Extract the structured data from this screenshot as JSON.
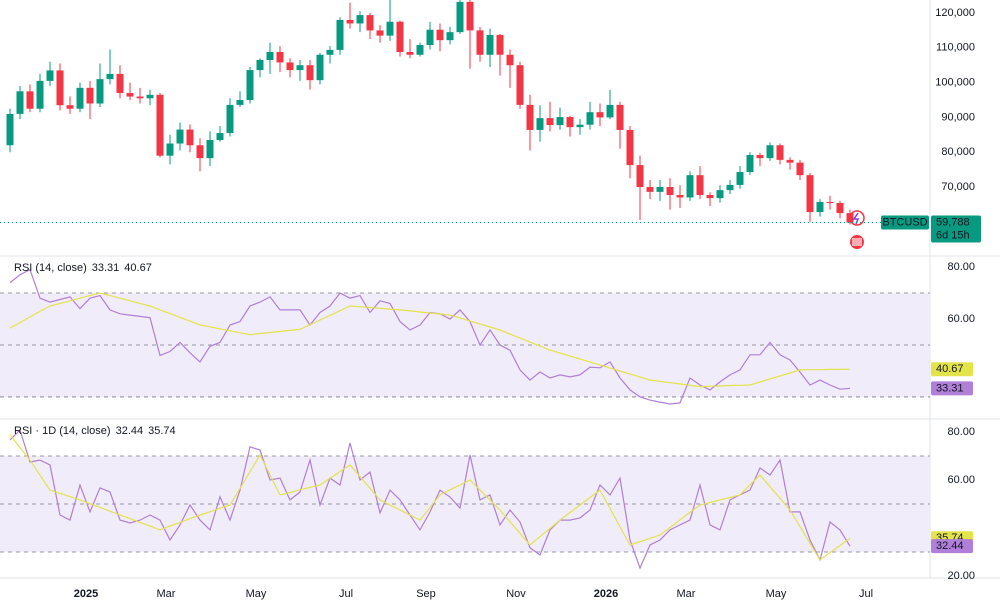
{
  "chart_data": [
    {
      "type": "candlestick",
      "symbol": "BTCUSD",
      "price_label": "59,788",
      "countdown": "6d 15h",
      "up_color": "#089981",
      "down_color": "#f23645",
      "categories": [
        null,
        null,
        null,
        null,
        null,
        null,
        null,
        null,
        "2025",
        null,
        null,
        null,
        null,
        null,
        null,
        null,
        "Mar",
        null,
        null,
        null,
        null,
        null,
        null,
        null,
        null,
        "May",
        null,
        null,
        null,
        null,
        null,
        null,
        null,
        null,
        "Jul",
        null,
        null,
        null,
        null,
        null,
        null,
        null,
        "Sep",
        null,
        null,
        null,
        null,
        null,
        null,
        null,
        null,
        "Nov",
        null,
        null,
        null,
        null,
        null,
        null,
        null,
        null,
        "2026",
        null,
        null,
        null,
        null,
        null,
        null,
        null,
        "Mar",
        null,
        null,
        null,
        null,
        null,
        null,
        null,
        null,
        "May",
        null,
        null,
        null,
        null,
        null,
        null,
        null,
        null,
        "Jul"
      ],
      "candles": [
        [
          82000,
          92500,
          80000,
          91000
        ],
        [
          91000,
          99000,
          89500,
          97500
        ],
        [
          97500,
          99500,
          91500,
          92500
        ],
        [
          92500,
          102500,
          91500,
          100500
        ],
        [
          100500,
          106000,
          99000,
          103500
        ],
        [
          103500,
          105500,
          92000,
          93500
        ],
        [
          93500,
          96000,
          91000,
          92500
        ],
        [
          92500,
          100000,
          91500,
          98500
        ],
        [
          98500,
          100500,
          89500,
          94000
        ],
        [
          94000,
          105500,
          93000,
          101000
        ],
        [
          101000,
          109500,
          99500,
          102500
        ],
        [
          102500,
          105000,
          95500,
          97000
        ],
        [
          97000,
          100000,
          95000,
          96000
        ],
        [
          96000,
          98500,
          94000,
          95500
        ],
        [
          95500,
          98000,
          93500,
          96500
        ],
        [
          96500,
          97000,
          78500,
          79000
        ],
        [
          79000,
          85000,
          76500,
          82500
        ],
        [
          82500,
          88500,
          80500,
          86500
        ],
        [
          86500,
          88000,
          80000,
          82000
        ],
        [
          82000,
          84000,
          74500,
          78300
        ],
        [
          78300,
          86000,
          76000,
          83500
        ],
        [
          83500,
          87500,
          83000,
          85500
        ],
        [
          85500,
          95500,
          84500,
          93600
        ],
        [
          93600,
          97500,
          93000,
          95000
        ],
        [
          95000,
          104500,
          94000,
          103600
        ],
        [
          103600,
          107000,
          101500,
          106500
        ],
        [
          106500,
          111500,
          102500,
          108800
        ],
        [
          108800,
          110500,
          103000,
          105800
        ],
        [
          105800,
          107000,
          101500,
          103600
        ],
        [
          103600,
          106500,
          100500,
          105000
        ],
        [
          105000,
          106500,
          98000,
          100700
        ],
        [
          100700,
          108500,
          99500,
          108000
        ],
        [
          108000,
          110500,
          105500,
          109400
        ],
        [
          109400,
          118800,
          108000,
          118000
        ],
        [
          118000,
          123000,
          115500,
          117000
        ],
        [
          117000,
          120500,
          114500,
          119400
        ],
        [
          119400,
          120000,
          112500,
          115000
        ],
        [
          115000,
          116500,
          111500,
          113500
        ],
        [
          113500,
          124000,
          112000,
          117500
        ],
        [
          117500,
          117800,
          107500,
          108800
        ],
        [
          108800,
          112500,
          107000,
          108000
        ],
        [
          108000,
          111500,
          107500,
          110800
        ],
        [
          110800,
          117500,
          109500,
          115200
        ],
        [
          115200,
          117000,
          109000,
          112200
        ],
        [
          112200,
          116000,
          111000,
          114500
        ],
        [
          114500,
          125500,
          114000,
          123200
        ],
        [
          123200,
          124500,
          104000,
          115000
        ],
        [
          115000,
          116000,
          106000,
          108000
        ],
        [
          108000,
          115500,
          104500,
          113700
        ],
        [
          113700,
          114000,
          102000,
          108000
        ],
        [
          108000,
          109500,
          98500,
          105000
        ],
        [
          105000,
          106000,
          92500,
          93600
        ],
        [
          93600,
          96500,
          80500,
          86400
        ],
        [
          86400,
          93500,
          83000,
          89800
        ],
        [
          89800,
          94500,
          86000,
          87800
        ],
        [
          87800,
          92800,
          86500,
          90100
        ],
        [
          90100,
          90500,
          84500,
          87200
        ],
        [
          87200,
          89500,
          85000,
          87900
        ],
        [
          87900,
          94500,
          86500,
          91500
        ],
        [
          91500,
          94000,
          87500,
          90000
        ],
        [
          90000,
          97900,
          89500,
          93600
        ],
        [
          93600,
          94500,
          81000,
          86400
        ],
        [
          86400,
          87500,
          72500,
          76300
        ],
        [
          76300,
          79000,
          60500,
          70000
        ],
        [
          70000,
          72000,
          66500,
          68600
        ],
        [
          68600,
          72000,
          66000,
          70000
        ],
        [
          70000,
          72500,
          63500,
          67700
        ],
        [
          67700,
          70500,
          64000,
          67000
        ],
        [
          67000,
          74500,
          66000,
          73400
        ],
        [
          73400,
          76000,
          66500,
          67700
        ],
        [
          67700,
          68500,
          64500,
          66800
        ],
        [
          66800,
          70500,
          65500,
          69100
        ],
        [
          69100,
          72000,
          68000,
          70600
        ],
        [
          70600,
          76000,
          69500,
          74300
        ],
        [
          74300,
          80000,
          73500,
          79200
        ],
        [
          79200,
          79800,
          76000,
          78300
        ],
        [
          78300,
          82800,
          77500,
          82000
        ],
        [
          82000,
          82500,
          76500,
          77800
        ],
        [
          77800,
          78500,
          75000,
          77000
        ],
        [
          77000,
          77800,
          72000,
          73400
        ],
        [
          73400,
          74000,
          60000,
          62800
        ],
        [
          62800,
          66500,
          61500,
          65700
        ],
        [
          65700,
          67500,
          63500,
          65400
        ],
        [
          65400,
          66000,
          61000,
          62500
        ],
        [
          62500,
          63500,
          59200,
          59788
        ],
        null,
        null
      ],
      "ylim": [
        50460,
        123740
      ],
      "yticks": [
        {
          "value": 120000,
          "label": "120,000"
        },
        {
          "value": 110000,
          "label": "110,000"
        },
        {
          "value": 100000,
          "label": "100,000"
        },
        {
          "value": 90000,
          "label": "90,000"
        },
        {
          "value": 80000,
          "label": "80,000"
        },
        {
          "value": 70000,
          "label": "70,000"
        }
      ]
    },
    {
      "type": "line",
      "title": "RSI (14, close)",
      "ylim": [
        21.9,
        83.85
      ],
      "levels": [
        70,
        50,
        30
      ],
      "yticks": [
        {
          "value": 80,
          "label": "80.00"
        },
        {
          "value": 60,
          "label": "60.00"
        }
      ],
      "series": [
        {
          "color": "#b07fd8",
          "values": [
            74,
            77,
            79,
            68,
            66.5,
            67.5,
            68.5,
            64,
            68,
            69,
            63.5,
            62,
            61.5,
            61,
            60.5,
            46,
            47.5,
            51,
            47,
            43.5,
            49.5,
            51,
            57.7,
            59,
            65,
            66.5,
            68.5,
            63.5,
            63.5,
            63.5,
            57.7,
            62.5,
            65,
            70,
            68,
            69,
            62.5,
            67,
            66,
            59,
            55.8,
            57.7,
            62.5,
            62,
            60,
            63.5,
            59,
            50,
            55.8,
            50,
            48,
            40.4,
            36.5,
            39.6,
            37.3,
            38.5,
            37.7,
            38.5,
            41.5,
            41.2,
            43.5,
            37.3,
            32.7,
            30,
            28.8,
            28,
            27.3,
            27.7,
            37.3,
            34.6,
            32.7,
            35.8,
            38.5,
            40.4,
            46.2,
            46.2,
            51,
            46.2,
            44.2,
            39.6,
            34.6,
            36.5,
            34.6,
            33,
            33.31,
            null,
            null
          ]
        },
        {
          "color": "#e3e34a",
          "values": [
            56.5,
            58.6,
            60.8,
            62.9,
            65,
            66,
            67,
            68,
            69,
            70,
            69,
            68,
            67,
            66,
            65,
            63.5,
            62.1,
            60.6,
            59.2,
            57.7,
            57,
            56.2,
            55.5,
            54.7,
            54,
            54.4,
            54.8,
            55.2,
            55.6,
            56,
            57.8,
            59.6,
            61.4,
            63.2,
            65,
            64.7,
            64.4,
            64.1,
            63.8,
            63.5,
            63.1,
            62.7,
            62.3,
            61.9,
            61.5,
            60.4,
            59.2,
            58.1,
            56.9,
            55.8,
            54.2,
            52.7,
            51.1,
            49.6,
            48,
            46.9,
            45.7,
            44.6,
            43.4,
            42.3,
            41.1,
            40,
            38.8,
            37.7,
            36.5,
            36,
            35.5,
            35,
            34.5,
            34,
            34.1,
            34.2,
            34.4,
            34.5,
            34.6,
            35.8,
            36.9,
            38.1,
            39.2,
            40.4,
            40.5,
            40.5,
            40.6,
            40.6,
            40.67,
            null,
            null
          ]
        }
      ]
    },
    {
      "type": "line",
      "title": "RSI · 1D (14, close)",
      "ylim": [
        19.17,
        85
      ],
      "levels": [
        70,
        50,
        30
      ],
      "yticks": [
        {
          "value": 80,
          "label": "80.00"
        },
        {
          "value": 60,
          "label": "60.00"
        },
        {
          "value": 20,
          "label": "20.00"
        }
      ],
      "series": [
        {
          "color": "#b07fd8",
          "values": [
            76.7,
            80.8,
            67.5,
            68.3,
            66.3,
            45.4,
            43.3,
            57.9,
            46.7,
            56.7,
            55,
            43.3,
            42.1,
            43.3,
            45.4,
            43.3,
            35,
            41.3,
            49.6,
            43.3,
            39.2,
            53,
            43.3,
            55.8,
            73.8,
            72.5,
            60,
            60.8,
            51.7,
            55,
            68.3,
            49.6,
            60.8,
            57.9,
            75.4,
            60,
            63.3,
            46.3,
            55.8,
            51.7,
            45.4,
            39.2,
            46.7,
            55.8,
            52.9,
            48.3,
            70.4,
            51.7,
            53.8,
            41.3,
            47.5,
            42.5,
            31.7,
            28.8,
            39.2,
            43.3,
            43.3,
            44.2,
            47.5,
            57.9,
            53.8,
            60.8,
            35,
            23.3,
            32.9,
            35,
            39.2,
            41.3,
            43.3,
            57.9,
            41.3,
            39.2,
            51.7,
            53.8,
            55.8,
            65,
            62.1,
            68.3,
            46.7,
            46.7,
            35,
            26.7,
            42.5,
            39.2,
            32.44,
            null,
            null
          ]
        },
        {
          "color": "#e3e34a",
          "values": [
            78.8,
            73.5,
            68.3,
            62,
            55.8,
            54.4,
            53.1,
            51.7,
            50.1,
            48.6,
            47,
            45.4,
            43.9,
            42.3,
            40.8,
            39.2,
            40.8,
            42.3,
            43.9,
            45.4,
            46.8,
            48.2,
            49.6,
            56.5,
            63.5,
            70.4,
            62.1,
            53.8,
            54.8,
            55.9,
            56.9,
            57.9,
            60.7,
            63.5,
            66.3,
            61.4,
            56.6,
            51.7,
            49.6,
            47.5,
            45.4,
            43.3,
            48.6,
            53.8,
            55.9,
            57.9,
            60,
            55.8,
            51.7,
            47.5,
            42.6,
            37.8,
            32.9,
            36.4,
            39.8,
            43.3,
            46.4,
            49.6,
            52.7,
            55.8,
            48.2,
            40.5,
            32.9,
            34.3,
            35.7,
            37.1,
            40.2,
            43.4,
            46.5,
            49.6,
            50.6,
            51.7,
            52.7,
            53.8,
            58,
            62.1,
            57.2,
            52.4,
            47.5,
            40.6,
            33.6,
            26.7,
            29.7,
            32.7,
            35.74,
            null,
            null
          ]
        }
      ]
    }
  ]
}
